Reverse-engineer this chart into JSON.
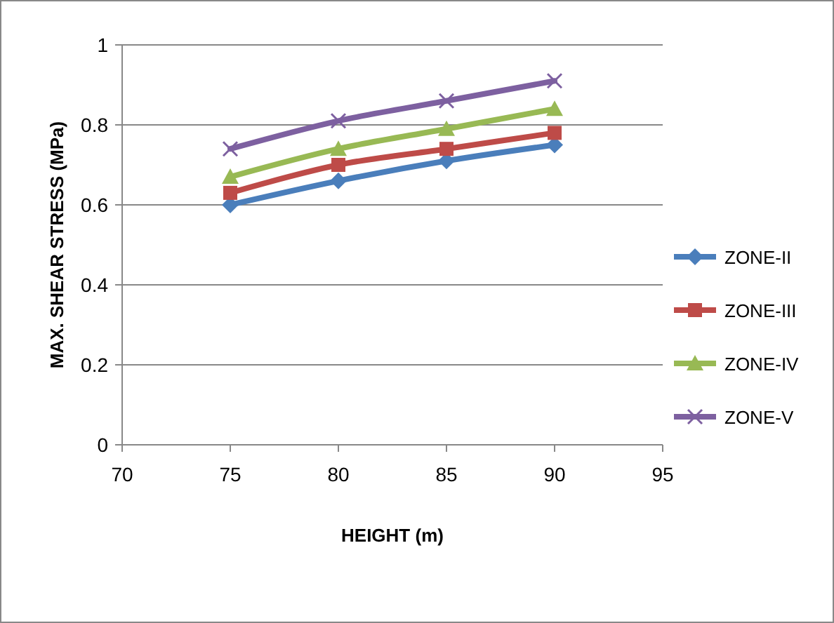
{
  "chart_data": {
    "type": "line",
    "xlabel": "HEIGHT (m)",
    "ylabel": "MAX. SHEAR STRESS (MPa)",
    "x": [
      75,
      80,
      85,
      90
    ],
    "xlim": [
      70,
      95
    ],
    "xticks": [
      70,
      75,
      80,
      85,
      90,
      95
    ],
    "ylim": [
      0,
      1
    ],
    "yticks": [
      0,
      0.2,
      0.4,
      0.6,
      0.8,
      1
    ],
    "grid": "y",
    "legend": "right",
    "series": [
      {
        "name": "ZONE-II",
        "color": "#4a7ebb",
        "marker": "diamond",
        "values": [
          0.6,
          0.66,
          0.71,
          0.75
        ]
      },
      {
        "name": "ZONE-III",
        "color": "#be4b48",
        "marker": "square",
        "values": [
          0.63,
          0.7,
          0.74,
          0.78
        ]
      },
      {
        "name": "ZONE-IV",
        "color": "#98b954",
        "marker": "triangle",
        "values": [
          0.67,
          0.74,
          0.79,
          0.84
        ]
      },
      {
        "name": "ZONE-V",
        "color": "#7d60a0",
        "marker": "cross",
        "values": [
          0.74,
          0.81,
          0.86,
          0.91
        ]
      }
    ]
  }
}
